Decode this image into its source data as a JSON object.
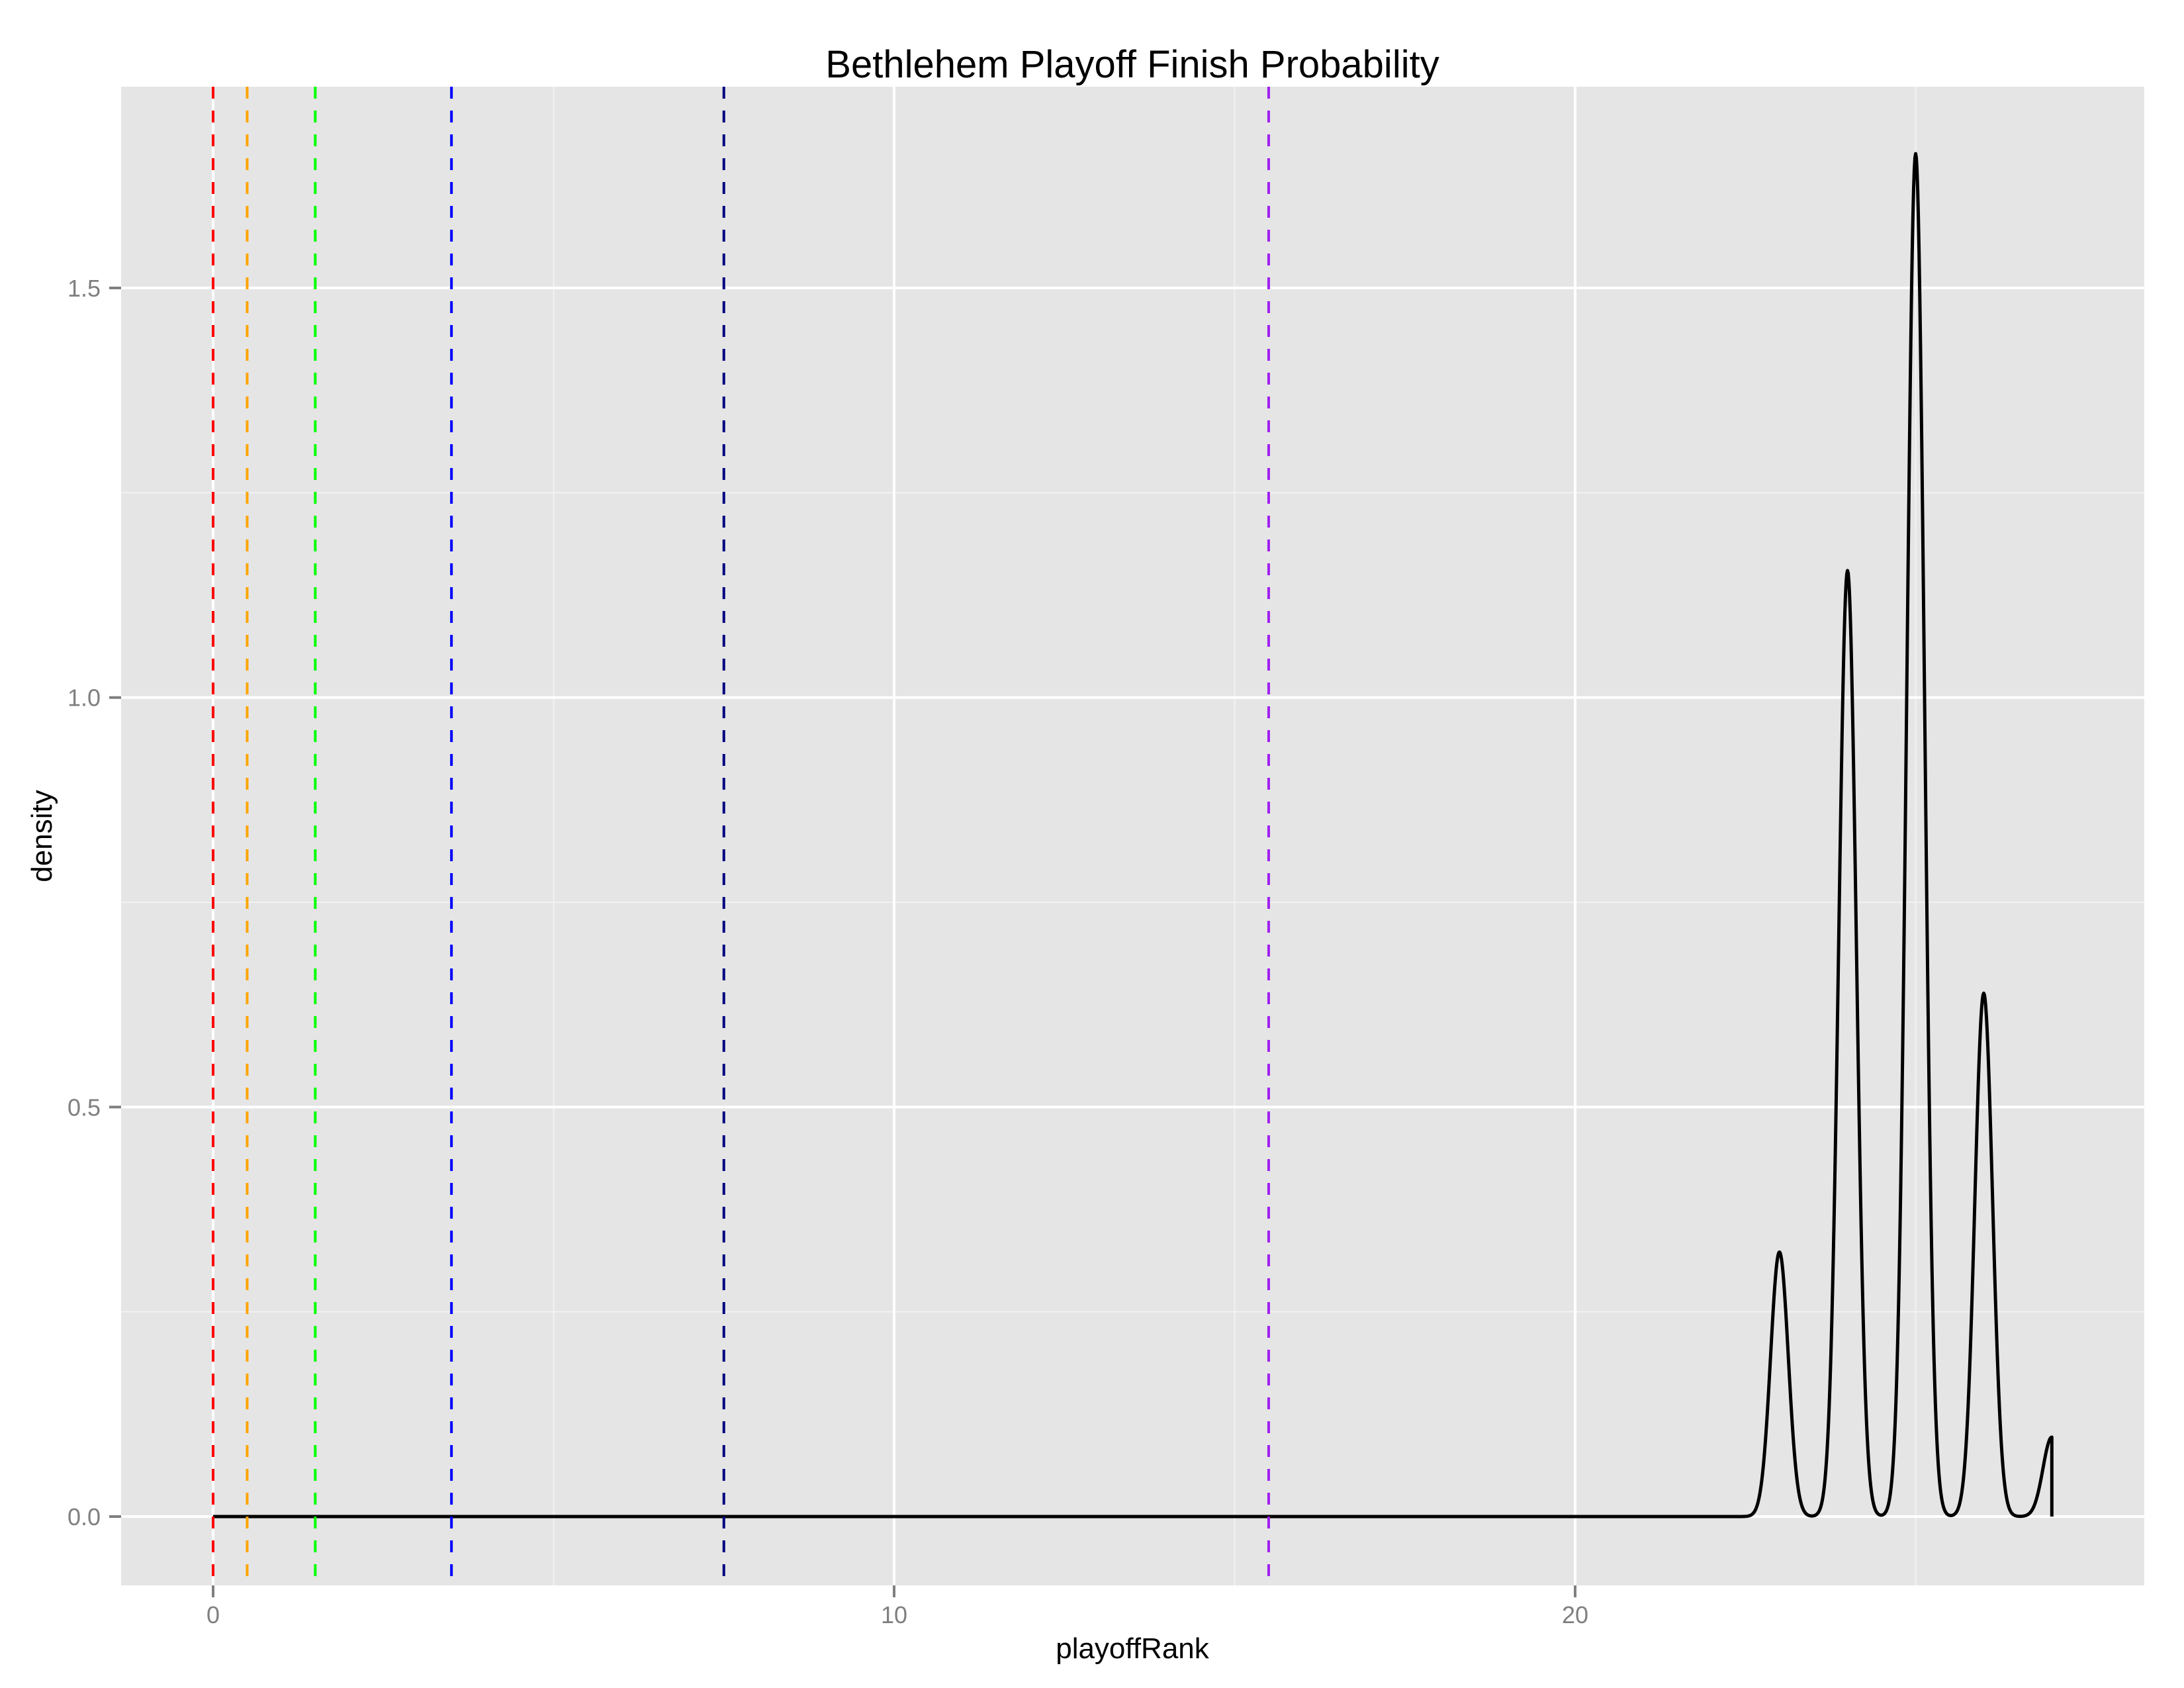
{
  "chart_data": {
    "type": "line",
    "subtype": "density",
    "title": "Bethlehem Playoff Finish Probability",
    "xlabel": "playoffRank",
    "ylabel": "density",
    "xlim": [
      -1.35,
      28.35
    ],
    "ylim": [
      -0.085,
      1.73
    ],
    "x_ticks": [
      0,
      10,
      20
    ],
    "x_tick_labels": [
      "0",
      "10",
      "20"
    ],
    "x_minor_gridlines": [
      5,
      15,
      25
    ],
    "y_ticks": [
      0.0,
      0.5,
      1.0,
      1.5
    ],
    "y_tick_labels": [
      "0.0",
      "0.5",
      "1.0",
      "1.5"
    ],
    "y_minor_gridlines": [
      0.25,
      0.75,
      1.25
    ],
    "grid": true,
    "legend": null,
    "series": [
      {
        "name": "density",
        "color": "#000000",
        "x_range": [
          0,
          27
        ],
        "baseline": 0.0,
        "peaks": [
          {
            "x": 23,
            "density": 0.323
          },
          {
            "x": 24,
            "density": 1.155
          },
          {
            "x": 25,
            "density": 1.664
          },
          {
            "x": 26,
            "density": 0.639
          },
          {
            "x": 27,
            "density": 0.097
          }
        ]
      }
    ],
    "vlines": [
      {
        "x": 0.0,
        "color": "#ff0000",
        "style": "dashed"
      },
      {
        "x": 0.5,
        "color": "#ffa500",
        "style": "dashed"
      },
      {
        "x": 1.5,
        "color": "#00ff00",
        "style": "dashed"
      },
      {
        "x": 3.5,
        "color": "#0000ff",
        "style": "dashed"
      },
      {
        "x": 7.5,
        "color": "#000080",
        "style": "dashed"
      },
      {
        "x": 15.5,
        "color": "#a020f0",
        "style": "dashed"
      }
    ]
  },
  "colors": {
    "panel_background": "#e5e5e5",
    "grid_major": "#ffffff",
    "grid_minor": "#f2f2f2",
    "tick_color": "#7f7f7f"
  }
}
